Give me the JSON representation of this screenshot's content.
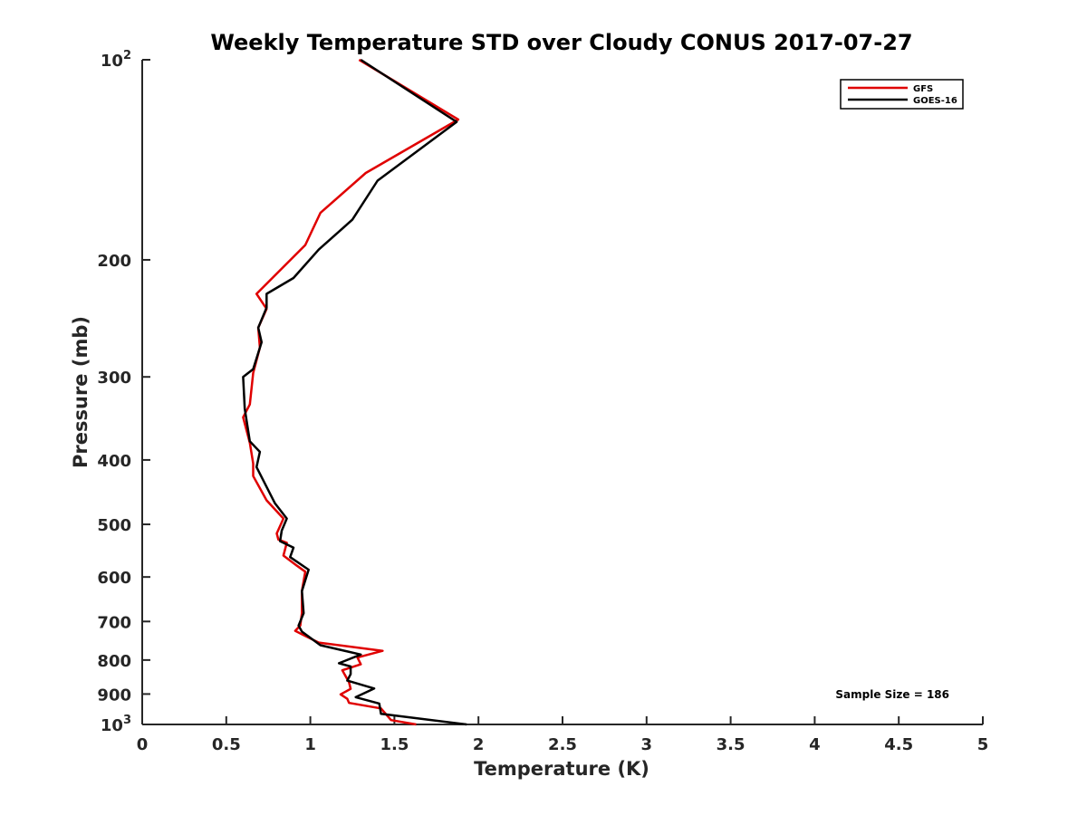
{
  "chart_data": {
    "type": "line",
    "title": "Weekly Temperature STD over Cloudy CONUS 2017-07-27",
    "xlabel": "Temperature (K)",
    "ylabel": "Pressure (mb)",
    "xlim": [
      0,
      5
    ],
    "ylim": [
      100,
      1000
    ],
    "yscale": "log",
    "y_reversed": true,
    "grid": false,
    "legend_position": "top-right",
    "x_ticks": [
      0,
      0.5,
      1,
      1.5,
      2,
      2.5,
      3,
      3.5,
      4,
      4.5,
      5
    ],
    "x_tick_labels": [
      "0",
      "0.5",
      "1",
      "1.5",
      "2",
      "2.5",
      "3",
      "3.5",
      "4",
      "4.5",
      "5"
    ],
    "y_ticks": [
      100,
      200,
      300,
      400,
      500,
      600,
      700,
      800,
      900,
      1000
    ],
    "y_tick_labels": [
      {
        "base": "10",
        "exp": "2"
      },
      {
        "base": "200",
        "exp": ""
      },
      {
        "base": "300",
        "exp": ""
      },
      {
        "base": "400",
        "exp": ""
      },
      {
        "base": "500",
        "exp": ""
      },
      {
        "base": "600",
        "exp": ""
      },
      {
        "base": "700",
        "exp": ""
      },
      {
        "base": "800",
        "exp": ""
      },
      {
        "base": "900",
        "exp": ""
      },
      {
        "base": "10",
        "exp": "3"
      }
    ],
    "series": [
      {
        "name": "GFS",
        "color": "#e00000",
        "x": [
          1.29,
          1.88,
          1.33,
          1.06,
          0.97,
          0.84,
          0.68,
          0.74,
          0.69,
          0.7,
          0.66,
          0.64,
          0.6,
          0.64,
          0.66,
          0.66,
          0.74,
          0.84,
          0.8,
          0.81,
          0.86,
          0.84,
          0.92,
          0.97,
          0.95,
          0.95,
          0.94,
          0.91,
          0.97,
          1.05,
          1.43,
          1.28,
          1.3,
          1.19,
          1.23,
          1.24,
          1.18,
          1.22,
          1.23,
          1.42,
          1.48,
          1.63
        ],
        "y": [
          100,
          123,
          148,
          170,
          190,
          205,
          225,
          237,
          253,
          271,
          296,
          330,
          345,
          377,
          405,
          423,
          460,
          490,
          516,
          527,
          533,
          557,
          577,
          589,
          630,
          680,
          710,
          723,
          736,
          753,
          775,
          793,
          812,
          829,
          864,
          884,
          901,
          915,
          928,
          946,
          985,
          1000
        ]
      },
      {
        "name": "GOES-16",
        "color": "#000000",
        "x": [
          1.3,
          1.87,
          1.4,
          1.25,
          1.05,
          0.9,
          0.74,
          0.74,
          0.69,
          0.71,
          0.66,
          0.6,
          0.61,
          0.64,
          0.7,
          0.68,
          0.79,
          0.86,
          0.83,
          0.82,
          0.9,
          0.88,
          0.99,
          0.95,
          0.96,
          0.93,
          0.95,
          1.06,
          1.3,
          1.17,
          1.24,
          1.24,
          1.22,
          1.38,
          1.27,
          1.41,
          1.42,
          1.93
        ],
        "y": [
          100,
          124,
          152,
          174,
          193,
          213,
          225,
          236,
          253,
          266,
          292,
          300,
          335,
          375,
          389,
          410,
          465,
          490,
          511,
          530,
          542,
          560,
          585,
          630,
          680,
          710,
          725,
          760,
          785,
          809,
          818,
          840,
          859,
          883,
          910,
          930,
          964,
          1000
        ]
      }
    ],
    "annotation": "Sample Size = 186"
  }
}
